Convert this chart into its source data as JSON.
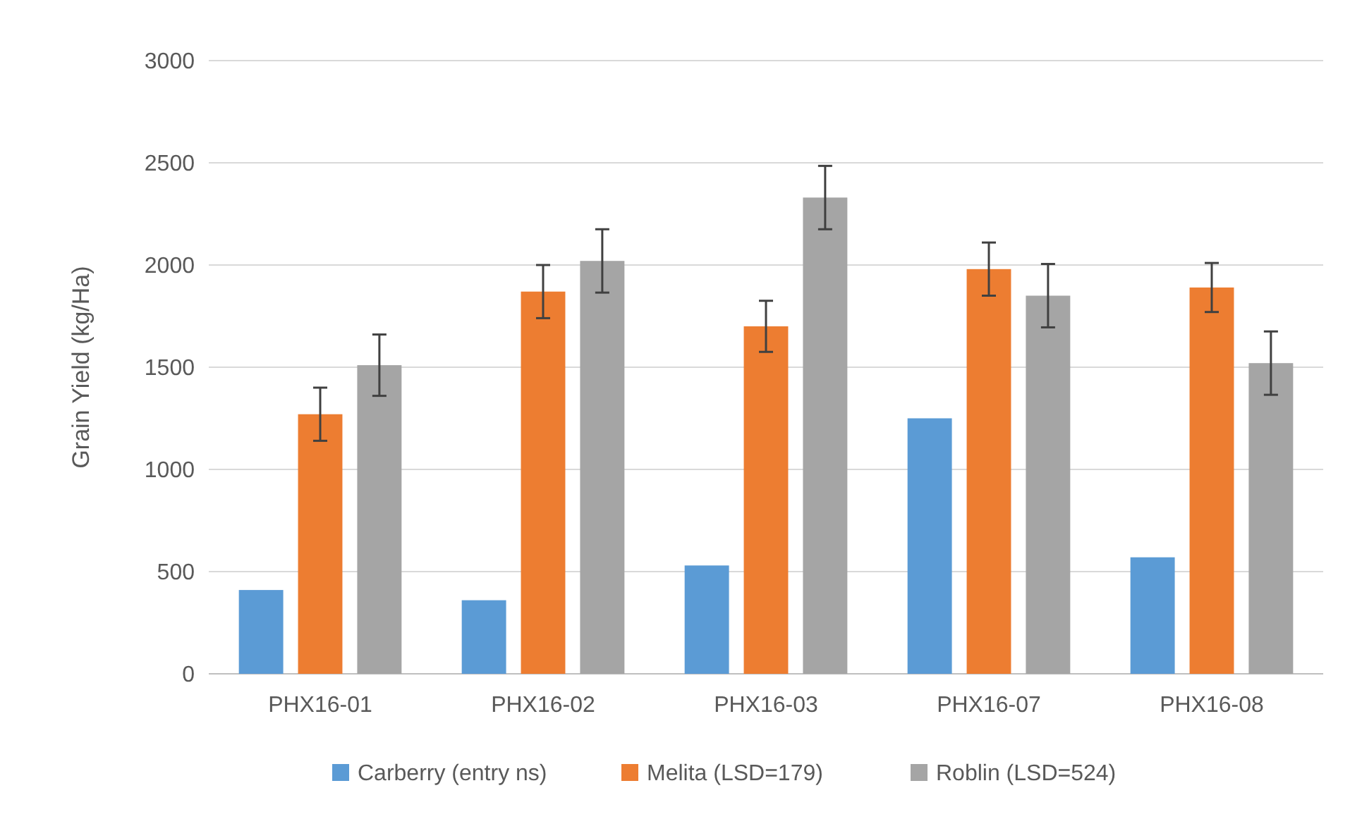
{
  "chart_data": {
    "type": "bar",
    "ylabel": "Grain Yield (kg/Ha)",
    "categories": [
      "PHX16-01",
      "PHX16-02",
      "PHX16-03",
      "PHX16-07",
      "PHX16-08"
    ],
    "series": [
      {
        "name": "Carberry (entry ns)",
        "color": "#5b9bd5",
        "values": [
          410,
          360,
          530,
          1250,
          570
        ]
      },
      {
        "name": "Melita (LSD=179)",
        "color": "#ed7d31",
        "values": [
          1270,
          1870,
          1700,
          1980,
          1890
        ],
        "errors": [
          130,
          130,
          125,
          130,
          120
        ]
      },
      {
        "name": "Roblin (LSD=524)",
        "color": "#a5a5a5",
        "values": [
          1510,
          2020,
          2330,
          1850,
          1520
        ],
        "errors": [
          150,
          155,
          155,
          155,
          155
        ]
      }
    ],
    "ylim": [
      0,
      3000
    ],
    "yticks": [
      0,
      500,
      1000,
      1500,
      2000,
      2500,
      3000
    ],
    "grid": "y",
    "legend": "bottom"
  }
}
